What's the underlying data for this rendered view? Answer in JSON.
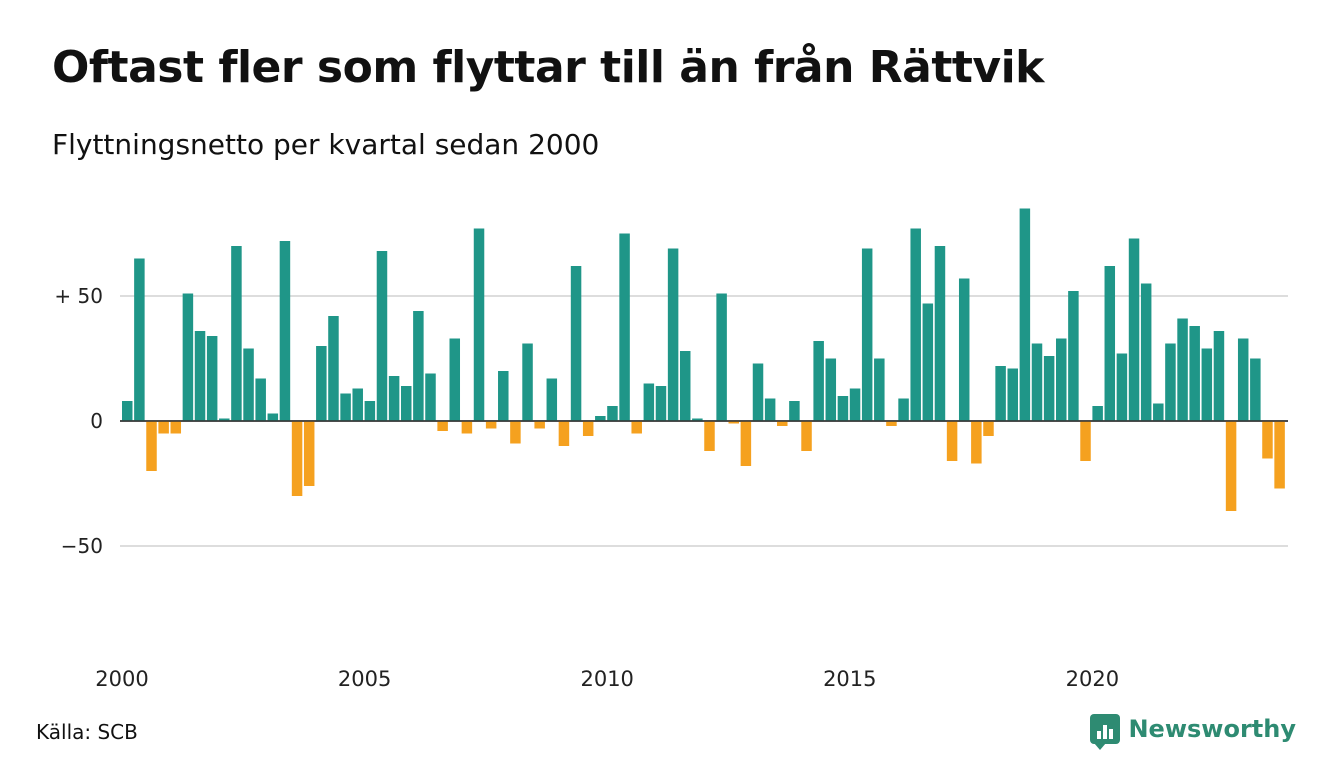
{
  "title": "Oftast fler som flyttar till än från Rättvik",
  "subtitle": "Flyttningsnetto per kvartal sedan 2000",
  "source": "Källa: SCB",
  "brand": "Newsworthy",
  "colors": {
    "positive": "#1f9688",
    "negative": "#f5a11f",
    "grid": "#dddddd",
    "zero": "#333333",
    "brand": "#2e8b72"
  },
  "chart_data": {
    "type": "bar",
    "y_tick_labels": [
      "+ 50",
      "0",
      "−50"
    ],
    "y_tick_values": [
      50,
      0,
      -50
    ],
    "x_tick_labels": [
      "2000",
      "2005",
      "2010",
      "2015",
      "2020"
    ],
    "x_tick_years": [
      2000,
      2005,
      2010,
      2015,
      2020
    ],
    "ylim": [
      -65,
      85
    ],
    "start": "2000 Q1",
    "values": [
      8,
      65,
      -20,
      -5,
      -5,
      51,
      36,
      34,
      1,
      70,
      29,
      17,
      3,
      72,
      -30,
      -26,
      30,
      42,
      11,
      13,
      8,
      68,
      18,
      14,
      44,
      19,
      -4,
      33,
      -5,
      77,
      -3,
      20,
      -9,
      31,
      -3,
      17,
      -10,
      62,
      -6,
      2,
      6,
      75,
      -5,
      15,
      14,
      69,
      28,
      1,
      -12,
      51,
      -1,
      -18,
      23,
      9,
      -2,
      8,
      -12,
      32,
      25,
      10,
      13,
      69,
      25,
      -2,
      9,
      77,
      47,
      70,
      -16,
      57,
      -17,
      -6,
      22,
      21,
      85,
      31,
      26,
      33,
      52,
      -16,
      6,
      62,
      27,
      73,
      55,
      7,
      31,
      41,
      38,
      29,
      36,
      -36,
      33,
      25,
      -15,
      -27
    ]
  }
}
